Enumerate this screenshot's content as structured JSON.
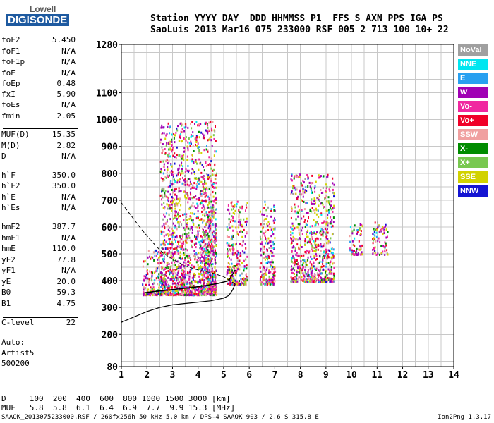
{
  "logo": {
    "line1": "Lowell",
    "line2": "DIGISONDE"
  },
  "header": {
    "row1": "Station YYYY DAY  DDD HHMMSS P1  FFS S AXN PPS IGA PS",
    "row2": "SaoLuis 2013 Mar16 075 233000 RSF 005 2 713 100 10+ 22"
  },
  "params": [
    {
      "name": "foF2",
      "value": "5.450"
    },
    {
      "name": "foF1",
      "value": "N/A"
    },
    {
      "name": "foF1p",
      "value": "N/A"
    },
    {
      "name": "foE",
      "value": "N/A"
    },
    {
      "name": "foEp",
      "value": "0.48"
    },
    {
      "name": "fxI",
      "value": "5.90"
    },
    {
      "name": "foEs",
      "value": "N/A"
    },
    {
      "name": "fmin",
      "value": "2.05"
    },
    {
      "name": "MUF(D)",
      "value": "15.35"
    },
    {
      "name": "M(D)",
      "value": "2.82"
    },
    {
      "name": "D",
      "value": "N/A"
    },
    {
      "name": "h`F",
      "value": "350.0"
    },
    {
      "name": "h`F2",
      "value": "350.0"
    },
    {
      "name": "h`E",
      "value": "N/A"
    },
    {
      "name": "h`Es",
      "value": "N/A"
    },
    {
      "name": "hmF2",
      "value": "387.7"
    },
    {
      "name": "hmF1",
      "value": "N/A"
    },
    {
      "name": "hmE",
      "value": "110.0"
    },
    {
      "name": "yF2",
      "value": "77.8"
    },
    {
      "name": "yF1",
      "value": "N/A"
    },
    {
      "name": "yE",
      "value": "20.0"
    },
    {
      "name": "B0",
      "value": "59.3"
    },
    {
      "name": "B1",
      "value": "4.75"
    },
    {
      "name": "C-level",
      "value": "22"
    }
  ],
  "notes": [
    "Auto:",
    "Artist5",
    "500200"
  ],
  "legend": [
    {
      "label": "NoVal",
      "color": "#a0a0a0"
    },
    {
      "label": "NNE",
      "color": "#00e6f0"
    },
    {
      "label": "E",
      "color": "#28a0f0"
    },
    {
      "label": "W",
      "color": "#a000b4"
    },
    {
      "label": "Vo-",
      "color": "#f028a0"
    },
    {
      "label": "Vo+",
      "color": "#f00028"
    },
    {
      "label": "SSW",
      "color": "#f0a0a0"
    },
    {
      "label": "X-",
      "color": "#008c00"
    },
    {
      "label": "X+",
      "color": "#78c850"
    },
    {
      "label": "SSE",
      "color": "#d2d200"
    },
    {
      "label": "NNW",
      "color": "#1414d2"
    }
  ],
  "muf_table": {
    "d_row": "D     100  200  400  600  800 1000 1500 3000 [km]",
    "muf_row": "MUF   5.8  5.8  6.1  6.4  6.9  7.7  9.9 15.3 [MHz]"
  },
  "footer": {
    "left": "SAAOK_2013075233000.RSF / 260fx256h 50 kHz 5.0 km / DPS-4 SAAOK 903 / 2.6 S 315.8 E",
    "right": "Ion2Png 1.3.17"
  },
  "chart_data": {
    "type": "scatter",
    "xlim": [
      1,
      14
    ],
    "ylim": [
      80,
      1280
    ],
    "x_ticks": [
      1,
      2,
      3,
      4,
      5,
      6,
      7,
      8,
      9,
      10,
      11,
      12,
      13,
      14
    ],
    "y_ticks": [
      80,
      200,
      300,
      400,
      500,
      600,
      700,
      800,
      900,
      1000,
      1100,
      1280
    ],
    "x_tick_labels": [
      "1",
      "2",
      "3",
      "4",
      "5",
      "6",
      "7",
      "8",
      "9",
      "10",
      "11",
      "12",
      "13",
      "14"
    ],
    "y_tick_labels": [
      "80",
      "200",
      "300",
      "400",
      "500",
      "600",
      "700",
      "800",
      "900",
      "1000",
      "1100",
      "1280"
    ],
    "grid": true,
    "echo_clusters": [
      {
        "x": [
          1.8,
          2.5
        ],
        "y": [
          350,
          520
        ]
      },
      {
        "x": [
          2.5,
          4.7
        ],
        "y": [
          350,
          1000
        ]
      },
      {
        "x": [
          4.1,
          4.7
        ],
        "y": [
          360,
          800
        ]
      },
      {
        "x": [
          5.1,
          5.9
        ],
        "y": [
          390,
          700
        ]
      },
      {
        "x": [
          6.4,
          7.0
        ],
        "y": [
          390,
          700
        ]
      },
      {
        "x": [
          7.6,
          9.3
        ],
        "y": [
          400,
          800
        ]
      },
      {
        "x": [
          9.9,
          10.4
        ],
        "y": [
          500,
          620
        ]
      },
      {
        "x": [
          10.8,
          11.4
        ],
        "y": [
          500,
          620
        ]
      }
    ],
    "profile_solid": {
      "x": [
        1.0,
        1.5,
        2.0,
        2.5,
        3.0,
        3.5,
        4.0,
        4.5,
        5.0,
        5.2,
        5.35,
        5.45
      ],
      "y": [
        245,
        265,
        285,
        300,
        310,
        315,
        320,
        325,
        335,
        345,
        365,
        387.7
      ]
    },
    "profile_dashed": {
      "x": [
        1.0,
        1.4,
        1.8,
        2.2,
        2.6,
        3.0,
        3.5,
        4.0,
        4.5,
        5.0,
        5.45
      ],
      "y": [
        690,
        640,
        590,
        545,
        505,
        480,
        455,
        440,
        430,
        415,
        387.7
      ]
    },
    "trace": {
      "x": [
        1.9,
        2.3,
        2.8,
        3.3,
        3.8,
        4.3,
        4.8,
        5.2,
        5.45
      ],
      "y": [
        355,
        360,
        365,
        370,
        375,
        382,
        390,
        400,
        440
      ]
    }
  }
}
